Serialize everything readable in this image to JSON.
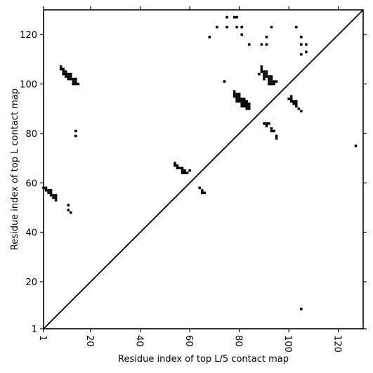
{
  "chart_data": {
    "type": "scatter",
    "title": "",
    "xlabel": "Residue index of top L/5 contact map",
    "ylabel": "Residue index of top L contact map",
    "xlim": [
      1,
      130
    ],
    "ylim": [
      1,
      130
    ],
    "xticks": [
      1,
      20,
      40,
      60,
      80,
      100,
      120
    ],
    "yticks": [
      1,
      20,
      40,
      60,
      80,
      100,
      120
    ],
    "x_tick_label_rotation": -90,
    "grid": false,
    "legend": "none",
    "diagonal": {
      "from": [
        1,
        1
      ],
      "to": [
        130,
        130
      ],
      "color": "#000000"
    },
    "marker": {
      "shape": "square",
      "color": "#000000"
    },
    "points": [
      [
        8,
        107
      ],
      [
        8,
        106
      ],
      [
        9,
        106
      ],
      [
        9,
        105
      ],
      [
        10,
        105
      ],
      [
        9,
        104
      ],
      [
        10,
        104
      ],
      [
        11,
        104
      ],
      [
        12,
        104
      ],
      [
        10,
        103
      ],
      [
        11,
        103
      ],
      [
        12,
        103
      ],
      [
        11,
        102
      ],
      [
        12,
        102
      ],
      [
        13,
        102
      ],
      [
        14,
        102
      ],
      [
        13,
        101
      ],
      [
        14,
        101
      ],
      [
        13,
        100
      ],
      [
        14,
        100
      ],
      [
        15,
        100
      ],
      [
        14,
        81
      ],
      [
        14,
        79
      ],
      [
        1,
        58
      ],
      [
        2,
        58
      ],
      [
        2,
        57
      ],
      [
        3,
        57
      ],
      [
        4,
        57
      ],
      [
        3,
        56
      ],
      [
        4,
        56
      ],
      [
        4,
        55
      ],
      [
        5,
        55
      ],
      [
        6,
        55
      ],
      [
        5,
        54
      ],
      [
        6,
        54
      ],
      [
        6,
        53
      ],
      [
        11,
        51
      ],
      [
        11,
        49
      ],
      [
        12,
        48
      ],
      [
        54,
        68
      ],
      [
        54,
        67
      ],
      [
        55,
        67
      ],
      [
        55,
        66
      ],
      [
        56,
        66
      ],
      [
        57,
        66
      ],
      [
        57,
        65
      ],
      [
        58,
        65
      ],
      [
        60,
        65
      ],
      [
        57,
        64
      ],
      [
        58,
        64
      ],
      [
        59,
        64
      ],
      [
        64,
        58
      ],
      [
        65,
        57
      ],
      [
        65,
        56
      ],
      [
        66,
        56
      ],
      [
        68,
        119
      ],
      [
        71,
        123
      ],
      [
        75,
        127
      ],
      [
        75,
        123
      ],
      [
        78,
        127
      ],
      [
        79,
        127
      ],
      [
        79,
        123
      ],
      [
        81,
        123
      ],
      [
        81,
        120
      ],
      [
        84,
        116
      ],
      [
        89,
        116
      ],
      [
        91,
        116
      ],
      [
        91,
        119
      ],
      [
        93,
        123
      ],
      [
        103,
        123
      ],
      [
        105,
        119
      ],
      [
        105,
        116
      ],
      [
        105,
        112
      ],
      [
        107,
        116
      ],
      [
        107,
        113
      ],
      [
        74,
        101
      ],
      [
        78,
        97
      ],
      [
        78,
        96
      ],
      [
        79,
        96
      ],
      [
        80,
        96
      ],
      [
        78,
        95
      ],
      [
        79,
        95
      ],
      [
        80,
        95
      ],
      [
        79,
        94
      ],
      [
        80,
        94
      ],
      [
        81,
        94
      ],
      [
        82,
        94
      ],
      [
        79,
        93
      ],
      [
        80,
        93
      ],
      [
        81,
        93
      ],
      [
        82,
        93
      ],
      [
        83,
        93
      ],
      [
        81,
        92
      ],
      [
        82,
        92
      ],
      [
        83,
        92
      ],
      [
        84,
        92
      ],
      [
        81,
        91
      ],
      [
        82,
        91
      ],
      [
        83,
        91
      ],
      [
        84,
        91
      ],
      [
        83,
        90
      ],
      [
        84,
        90
      ],
      [
        89,
        107
      ],
      [
        89,
        106
      ],
      [
        89,
        105
      ],
      [
        90,
        105
      ],
      [
        91,
        105
      ],
      [
        88,
        104
      ],
      [
        90,
        104
      ],
      [
        91,
        104
      ],
      [
        90,
        103
      ],
      [
        91,
        103
      ],
      [
        92,
        103
      ],
      [
        93,
        103
      ],
      [
        90,
        102
      ],
      [
        92,
        102
      ],
      [
        93,
        102
      ],
      [
        92,
        101
      ],
      [
        93,
        101
      ],
      [
        94,
        101
      ],
      [
        95,
        101
      ],
      [
        92,
        100
      ],
      [
        93,
        100
      ],
      [
        94,
        100
      ],
      [
        101,
        95
      ],
      [
        100,
        94
      ],
      [
        101,
        94
      ],
      [
        101,
        93
      ],
      [
        102,
        93
      ],
      [
        103,
        93
      ],
      [
        102,
        92
      ],
      [
        103,
        92
      ],
      [
        103,
        91
      ],
      [
        104,
        90
      ],
      [
        105,
        89
      ],
      [
        90,
        84
      ],
      [
        91,
        84
      ],
      [
        92,
        84
      ],
      [
        91,
        83
      ],
      [
        93,
        82
      ],
      [
        93,
        81
      ],
      [
        94,
        81
      ],
      [
        95,
        79
      ],
      [
        95,
        78
      ],
      [
        127,
        75
      ],
      [
        105,
        9
      ]
    ]
  }
}
